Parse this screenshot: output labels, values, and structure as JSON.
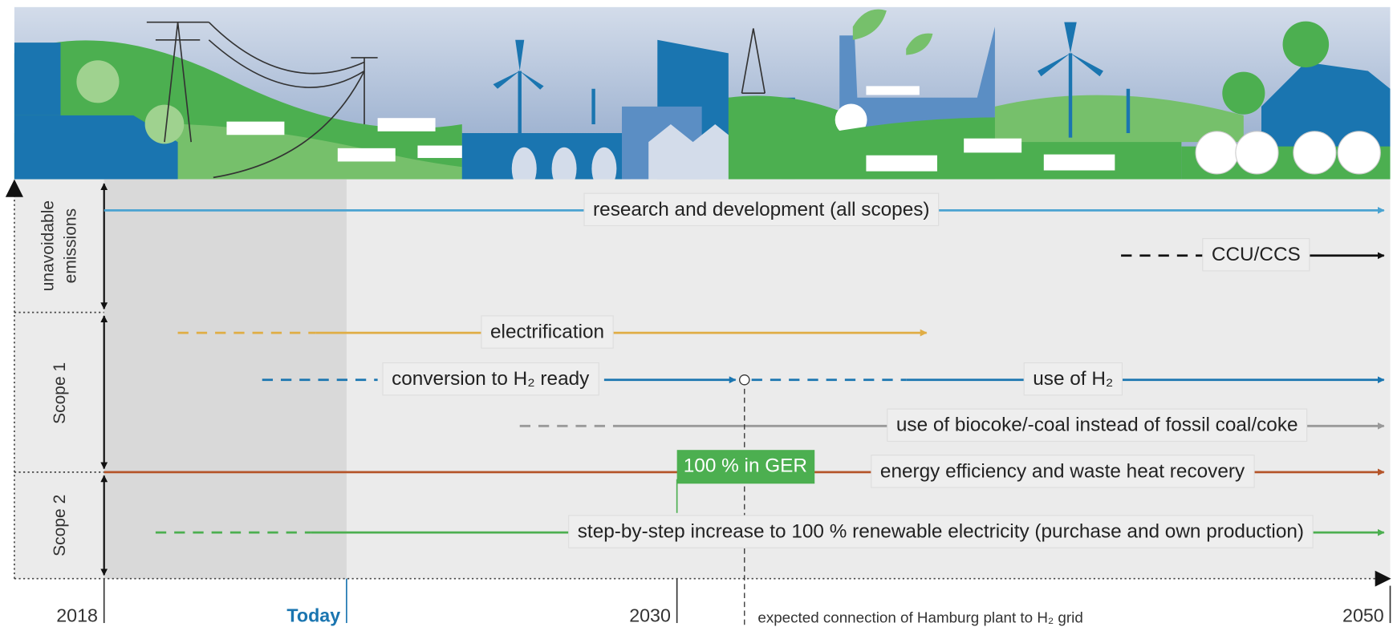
{
  "sections": [
    {
      "label": [
        "unavoidable",
        "emissions"
      ]
    },
    {
      "label": [
        "Scope 1"
      ]
    },
    {
      "label": [
        "Scope 2"
      ]
    }
  ],
  "measures": [
    "research and development (all scopes)",
    "CCU/CCS",
    "electrification",
    "conversion to H₂ ready",
    "use of H₂",
    "use of biocoke/-coal instead of fossil coal/coke",
    "energy efficiency and waste heat recovery",
    "step-by-step increase to 100 % renewable electricity (purchase and own production)"
  ],
  "milestone": "100 % in GER",
  "timeline": {
    "labels": [
      "2018",
      "Today",
      "2030",
      "2050"
    ],
    "note": "expected connection of Hamburg plant to H₂ grid"
  }
}
